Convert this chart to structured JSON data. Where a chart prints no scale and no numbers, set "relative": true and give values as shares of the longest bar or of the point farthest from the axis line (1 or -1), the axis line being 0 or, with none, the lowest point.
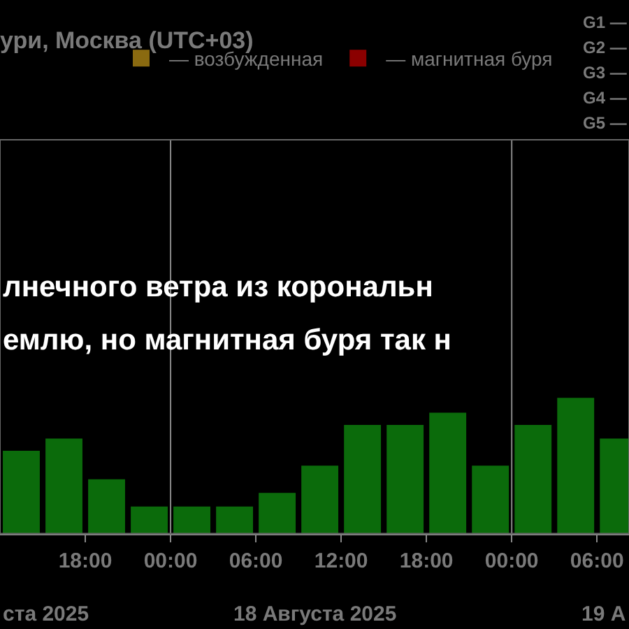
{
  "chart_data": {
    "type": "bar",
    "title": "ури, Москва (UTC+03)",
    "relative": true,
    "x": [
      "2025-08-17T13:30",
      "2025-08-17T16:30",
      "2025-08-17T19:30",
      "2025-08-17T22:30",
      "2025-08-18T01:30",
      "2025-08-18T04:30",
      "2025-08-18T07:30",
      "2025-08-18T10:30",
      "2025-08-18T13:30",
      "2025-08-18T16:30",
      "2025-08-18T19:30",
      "2025-08-18T22:30",
      "2025-08-19T01:30",
      "2025-08-19T04:30",
      "2025-08-19T07:30"
    ],
    "series": [
      {
        "color": "#0b6b0b",
        "values": [
          0.61,
          0.7,
          0.4,
          0.2,
          0.2,
          0.2,
          0.3,
          0.5,
          0.8,
          0.8,
          0.89,
          0.5,
          0.8,
          1,
          0.7
        ]
      },
      {
        "name": "— возбужденная",
        "color": "#8a6a10",
        "values": [
          null,
          null,
          null,
          null,
          null,
          null,
          null,
          null,
          null,
          null,
          null,
          null,
          null,
          null,
          null
        ]
      },
      {
        "name": "— магнитная буря",
        "color": "#8b0000",
        "values": [
          null,
          null,
          null,
          null,
          null,
          null,
          null,
          null,
          null,
          null,
          null,
          null,
          null,
          null,
          null
        ]
      }
    ],
    "xlim": [
      "2025-08-17T12:00",
      "2025-08-19T08:15"
    ],
    "xticks": [
      {
        "value": "2025-08-17T18:00",
        "label": "18:00"
      },
      {
        "value": "2025-08-18T00:00",
        "label": "00:00"
      },
      {
        "value": "2025-08-18T06:00",
        "label": "06:00"
      },
      {
        "value": "2025-08-18T12:00",
        "label": "12:00"
      },
      {
        "value": "2025-08-18T18:00",
        "label": "18:00"
      },
      {
        "value": "2025-08-19T00:00",
        "label": "00:00"
      },
      {
        "value": "2025-08-19T06:00",
        "label": "06:00"
      }
    ],
    "ref_lines": [
      {
        "axis": "x",
        "value": "2025-08-18",
        "label": null
      },
      {
        "axis": "x",
        "value": "2025-08-19",
        "label": null
      }
    ],
    "legend": "top left",
    "annotations": [
      "ста 2025",
      "18 Августа 2025",
      "19 А",
      "лнечного ветра из корональн",
      "емлю, но магнитная буря так н",
      "G1 —",
      "G2 —",
      "G3 —",
      "G4 —",
      "G5 —"
    ]
  }
}
